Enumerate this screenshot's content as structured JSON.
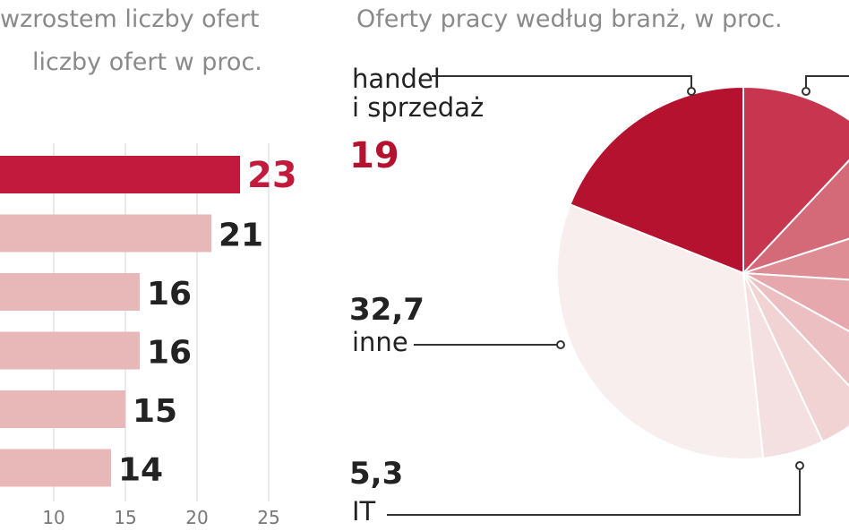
{
  "chart_data": [
    {
      "type": "bar",
      "orientation": "horizontal",
      "title": "wzrostem liczby ofert",
      "subtitle": "liczby ofert w proc.",
      "categories": [
        null,
        null,
        null,
        null,
        null,
        null
      ],
      "values": [
        23,
        21,
        16,
        16,
        15,
        14
      ],
      "colors": [
        "#c21a3c",
        "#e8b7b7",
        "#e8b7b7",
        "#e8b7b7",
        "#e8b7b7",
        "#e8b7b7"
      ],
      "xlim": [
        0,
        25
      ],
      "xticks": [
        10,
        15,
        20,
        25
      ],
      "grid": true
    },
    {
      "type": "pie",
      "title": "Oferty pracy według branż, w proc.",
      "categories": [
        "handel\ni sprzedaż",
        null,
        null,
        null,
        null,
        null,
        null,
        "IT",
        "inne"
      ],
      "values": [
        19,
        12,
        8,
        6,
        7,
        5,
        5,
        5.3,
        32.7
      ],
      "value_labels": [
        "19",
        null,
        null,
        null,
        null,
        null,
        null,
        "5,3",
        "32,7"
      ],
      "colors": [
        "#b5122f",
        "#c8354f",
        "#d46a78",
        "#de8d95",
        "#e6a8ac",
        "#ecc0c2",
        "#f1d3d3",
        "#f4e0e0",
        "#f8eeee"
      ]
    }
  ]
}
